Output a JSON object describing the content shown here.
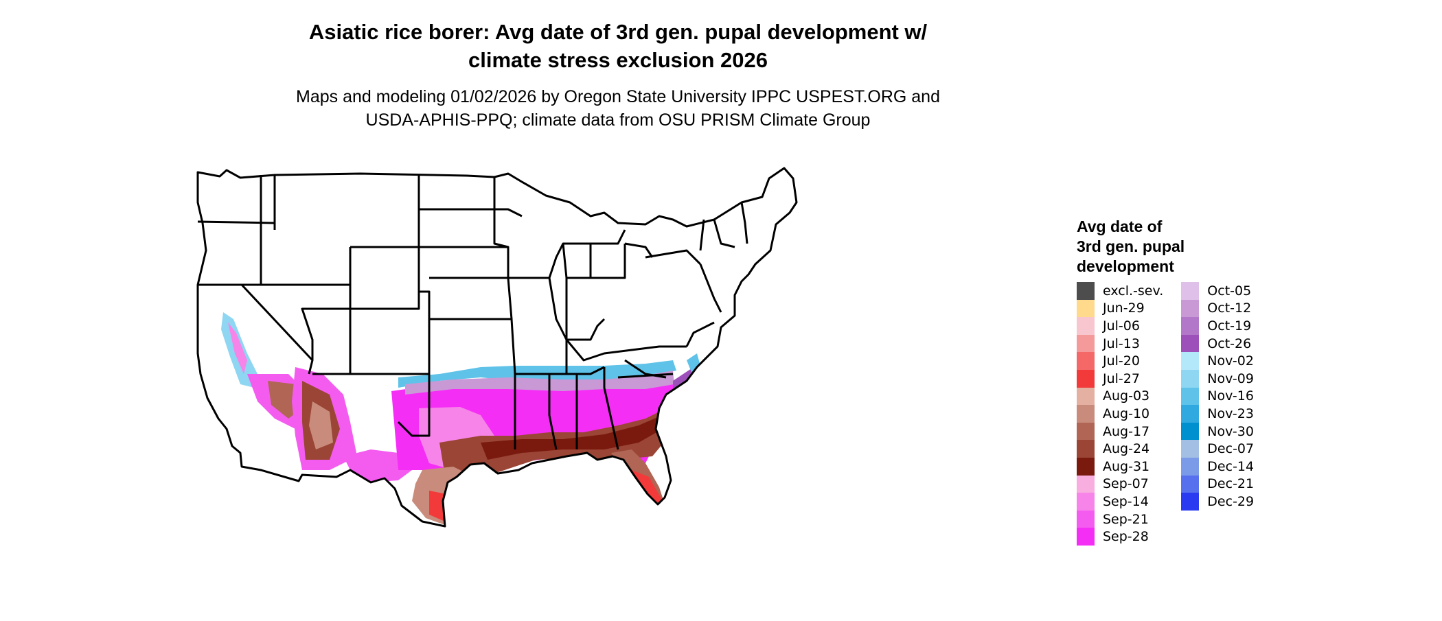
{
  "title_line1": "Asiatic rice borer: Avg date of 3rd gen. pupal development w/",
  "title_line2": "climate stress exclusion 2026",
  "subtitle_line1": "Maps and modeling 01/02/2026 by Oregon State University IPPC USPEST.ORG and",
  "subtitle_line2": "USDA-APHIS-PPQ; climate data from OSU PRISM Climate Group",
  "legend": {
    "title_line1": "Avg date of",
    "title_line2": "3rd gen. pupal",
    "title_line3": "development",
    "items": [
      {
        "label": "excl.-sev.",
        "color": "#4d4d4d"
      },
      {
        "label": "Jun-29",
        "color": "#ffd98c"
      },
      {
        "label": "Jul-06",
        "color": "#f7c6cf"
      },
      {
        "label": "Jul-13",
        "color": "#f59a9a"
      },
      {
        "label": "Jul-20",
        "color": "#f56868"
      },
      {
        "label": "Jul-27",
        "color": "#f23a3a"
      },
      {
        "label": "Aug-03",
        "color": "#e3b0a2"
      },
      {
        "label": "Aug-10",
        "color": "#c98c7c"
      },
      {
        "label": "Aug-17",
        "color": "#b06555"
      },
      {
        "label": "Aug-24",
        "color": "#9a4535"
      },
      {
        "label": "Aug-31",
        "color": "#7a1a0f"
      },
      {
        "label": "Sep-07",
        "color": "#f9aee0"
      },
      {
        "label": "Sep-14",
        "color": "#f784e8"
      },
      {
        "label": "Sep-21",
        "color": "#f45cf0"
      },
      {
        "label": "Sep-28",
        "color": "#f52ef5"
      },
      {
        "label": "Oct-05",
        "color": "#dfc0e8"
      },
      {
        "label": "Oct-12",
        "color": "#c999d6"
      },
      {
        "label": "Oct-19",
        "color": "#b277c8"
      },
      {
        "label": "Oct-26",
        "color": "#9d4fba"
      },
      {
        "label": "Nov-02",
        "color": "#b3e8fa"
      },
      {
        "label": "Nov-09",
        "color": "#8ed6f2"
      },
      {
        "label": "Nov-16",
        "color": "#5fc2e8"
      },
      {
        "label": "Nov-23",
        "color": "#2fa9df"
      },
      {
        "label": "Nov-30",
        "color": "#0090d0"
      },
      {
        "label": "Dec-07",
        "color": "#a3bfe3"
      },
      {
        "label": "Dec-14",
        "color": "#7b9ae8"
      },
      {
        "label": "Dec-21",
        "color": "#5670ee"
      },
      {
        "label": "Dec-29",
        "color": "#2a3af0"
      }
    ]
  }
}
